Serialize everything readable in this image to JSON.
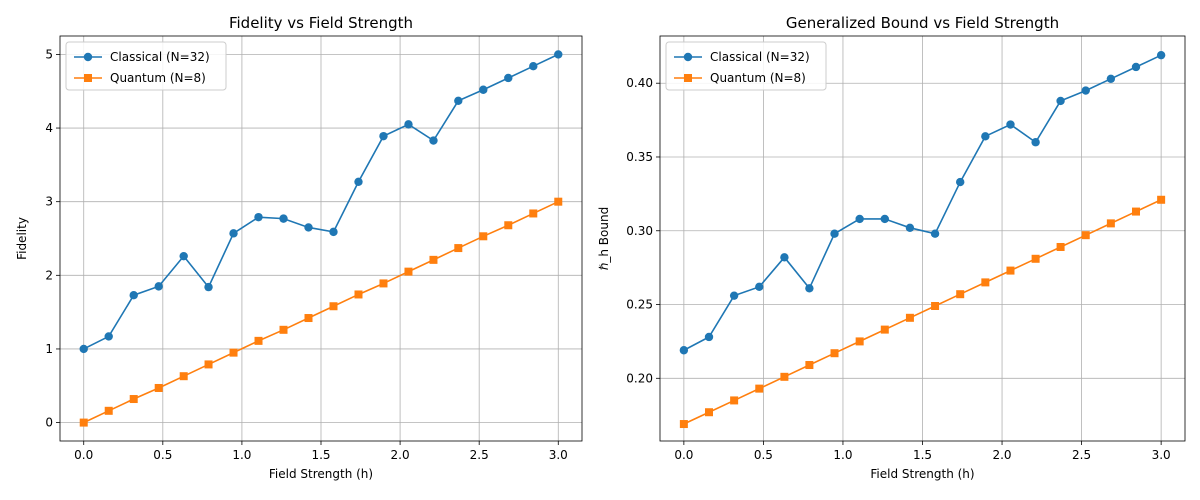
{
  "chart_data": [
    {
      "type": "line",
      "title": "Fidelity vs Field Strength",
      "xlabel": "Field Strength (h)",
      "ylabel": "Fidelity",
      "xlim": [
        -0.15,
        3.15
      ],
      "ylim": [
        -0.25,
        5.25
      ],
      "xticks": [
        0.0,
        0.5,
        1.0,
        1.5,
        2.0,
        2.5,
        3.0
      ],
      "xtick_labels": [
        "0.0",
        "0.5",
        "1.0",
        "1.5",
        "2.0",
        "2.5",
        "3.0"
      ],
      "yticks": [
        0,
        1,
        2,
        3,
        4,
        5
      ],
      "ytick_labels": [
        "0",
        "1",
        "2",
        "3",
        "4",
        "5"
      ],
      "grid": true,
      "legend_position": "top-left",
      "x": [
        0.0,
        0.158,
        0.316,
        0.474,
        0.632,
        0.789,
        0.947,
        1.105,
        1.263,
        1.421,
        1.579,
        1.737,
        1.895,
        2.053,
        2.211,
        2.368,
        2.526,
        2.684,
        2.842,
        3.0
      ],
      "series": [
        {
          "name": "Classical (N=32)",
          "color": "#1f77b4",
          "marker": "circle",
          "values": [
            1.0,
            1.17,
            1.73,
            1.85,
            2.26,
            1.84,
            2.57,
            2.79,
            2.77,
            2.65,
            2.59,
            3.27,
            3.89,
            4.05,
            3.83,
            4.37,
            4.52,
            4.68,
            4.84,
            5.0
          ]
        },
        {
          "name": "Quantum (N=8)",
          "color": "#ff7f0e",
          "marker": "square",
          "values": [
            0.0,
            0.16,
            0.32,
            0.47,
            0.63,
            0.79,
            0.95,
            1.11,
            1.26,
            1.42,
            1.58,
            1.74,
            1.89,
            2.05,
            2.21,
            2.37,
            2.53,
            2.68,
            2.84,
            3.0
          ]
        }
      ]
    },
    {
      "type": "line",
      "title": "Generalized Bound vs Field Strength",
      "xlabel": "Field Strength (h)",
      "ylabel": "ℏ_h Bound",
      "xlim": [
        -0.15,
        3.15
      ],
      "ylim": [
        0.1575,
        0.432
      ],
      "xticks": [
        0.0,
        0.5,
        1.0,
        1.5,
        2.0,
        2.5,
        3.0
      ],
      "xtick_labels": [
        "0.0",
        "0.5",
        "1.0",
        "1.5",
        "2.0",
        "2.5",
        "3.0"
      ],
      "yticks": [
        0.2,
        0.25,
        0.3,
        0.35,
        0.4
      ],
      "ytick_labels": [
        "0.20",
        "0.25",
        "0.30",
        "0.35",
        "0.40"
      ],
      "grid": true,
      "legend_position": "top-left",
      "x": [
        0.0,
        0.158,
        0.316,
        0.474,
        0.632,
        0.789,
        0.947,
        1.105,
        1.263,
        1.421,
        1.579,
        1.737,
        1.895,
        2.053,
        2.211,
        2.368,
        2.526,
        2.684,
        2.842,
        3.0
      ],
      "series": [
        {
          "name": "Classical (N=32)",
          "color": "#1f77b4",
          "marker": "circle",
          "values": [
            0.219,
            0.228,
            0.256,
            0.262,
            0.282,
            0.261,
            0.298,
            0.308,
            0.308,
            0.302,
            0.298,
            0.333,
            0.364,
            0.372,
            0.36,
            0.388,
            0.395,
            0.403,
            0.411,
            0.419
          ]
        },
        {
          "name": "Quantum (N=8)",
          "color": "#ff7f0e",
          "marker": "square",
          "values": [
            0.169,
            0.177,
            0.185,
            0.193,
            0.201,
            0.209,
            0.217,
            0.225,
            0.233,
            0.241,
            0.249,
            0.257,
            0.265,
            0.273,
            0.281,
            0.289,
            0.297,
            0.305,
            0.313,
            0.321
          ]
        }
      ]
    }
  ]
}
